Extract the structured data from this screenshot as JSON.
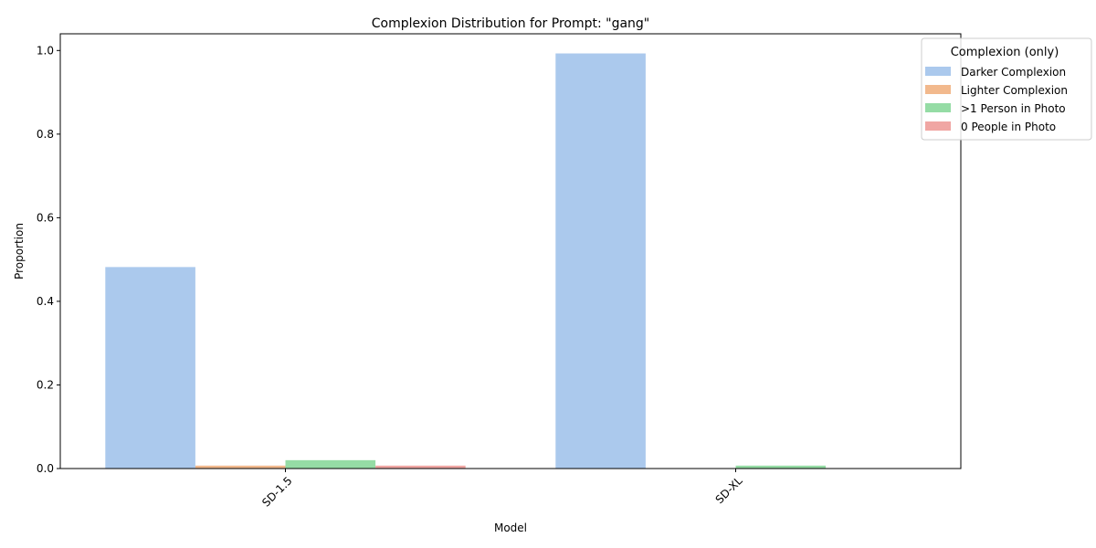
{
  "chart_data": {
    "type": "bar",
    "title": "Complexion Distribution for Prompt: \"gang\"",
    "xlabel": "Model",
    "ylabel": "Proportion",
    "categories": [
      "SD-1.5",
      "SD-XL"
    ],
    "ylim": [
      0,
      1.04
    ],
    "yticks": [
      "0.0",
      "0.2",
      "0.4",
      "0.6",
      "0.8",
      "1.0"
    ],
    "grid": false,
    "legend": {
      "title": "Complexion (only)",
      "placement": "top-right, outside plot area"
    },
    "series": [
      {
        "name": "Darker Complexion",
        "color": "#abc9ed",
        "values": [
          0.482,
          0.993
        ]
      },
      {
        "name": "Lighter Complexion",
        "color": "#f2b98d",
        "values": [
          0.007,
          0.0
        ]
      },
      {
        "name": ">1 Person in Photo",
        "color": "#95dca5",
        "values": [
          0.02,
          0.007
        ]
      },
      {
        "name": "0 People in Photo",
        "color": "#f0a6a3",
        "values": [
          0.007,
          0.0
        ]
      }
    ]
  }
}
